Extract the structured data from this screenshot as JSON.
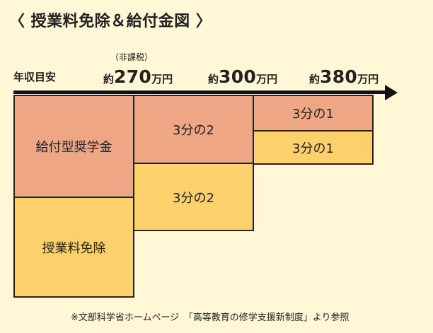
{
  "header": {
    "title": "〈 授業料免除＆給付金図 〉"
  },
  "income_axis": {
    "label": "年収目安",
    "note": "（非課税）",
    "levels": [
      {
        "prefix": "約",
        "amount": "270",
        "unit": "万円"
      },
      {
        "prefix": "約",
        "amount": "300",
        "unit": "万円"
      },
      {
        "prefix": "約",
        "amount": "380",
        "unit": "万円"
      }
    ]
  },
  "blocks": {
    "scholarship_full": "給付型奨学金",
    "tuition_full": "授業料免除",
    "scholarship_two_thirds": "3分の2",
    "tuition_two_thirds": "3分の2",
    "scholarship_one_third": "3分の1",
    "tuition_one_third": "3分の1"
  },
  "colors": {
    "background": "#fff7d6",
    "scholarship": "#eea684",
    "tuition": "#fcd06a",
    "axis": "#111111"
  },
  "footer": {
    "source": "※文部科学省ホームページ　「高等教育の修学支援新制度」より参照"
  }
}
